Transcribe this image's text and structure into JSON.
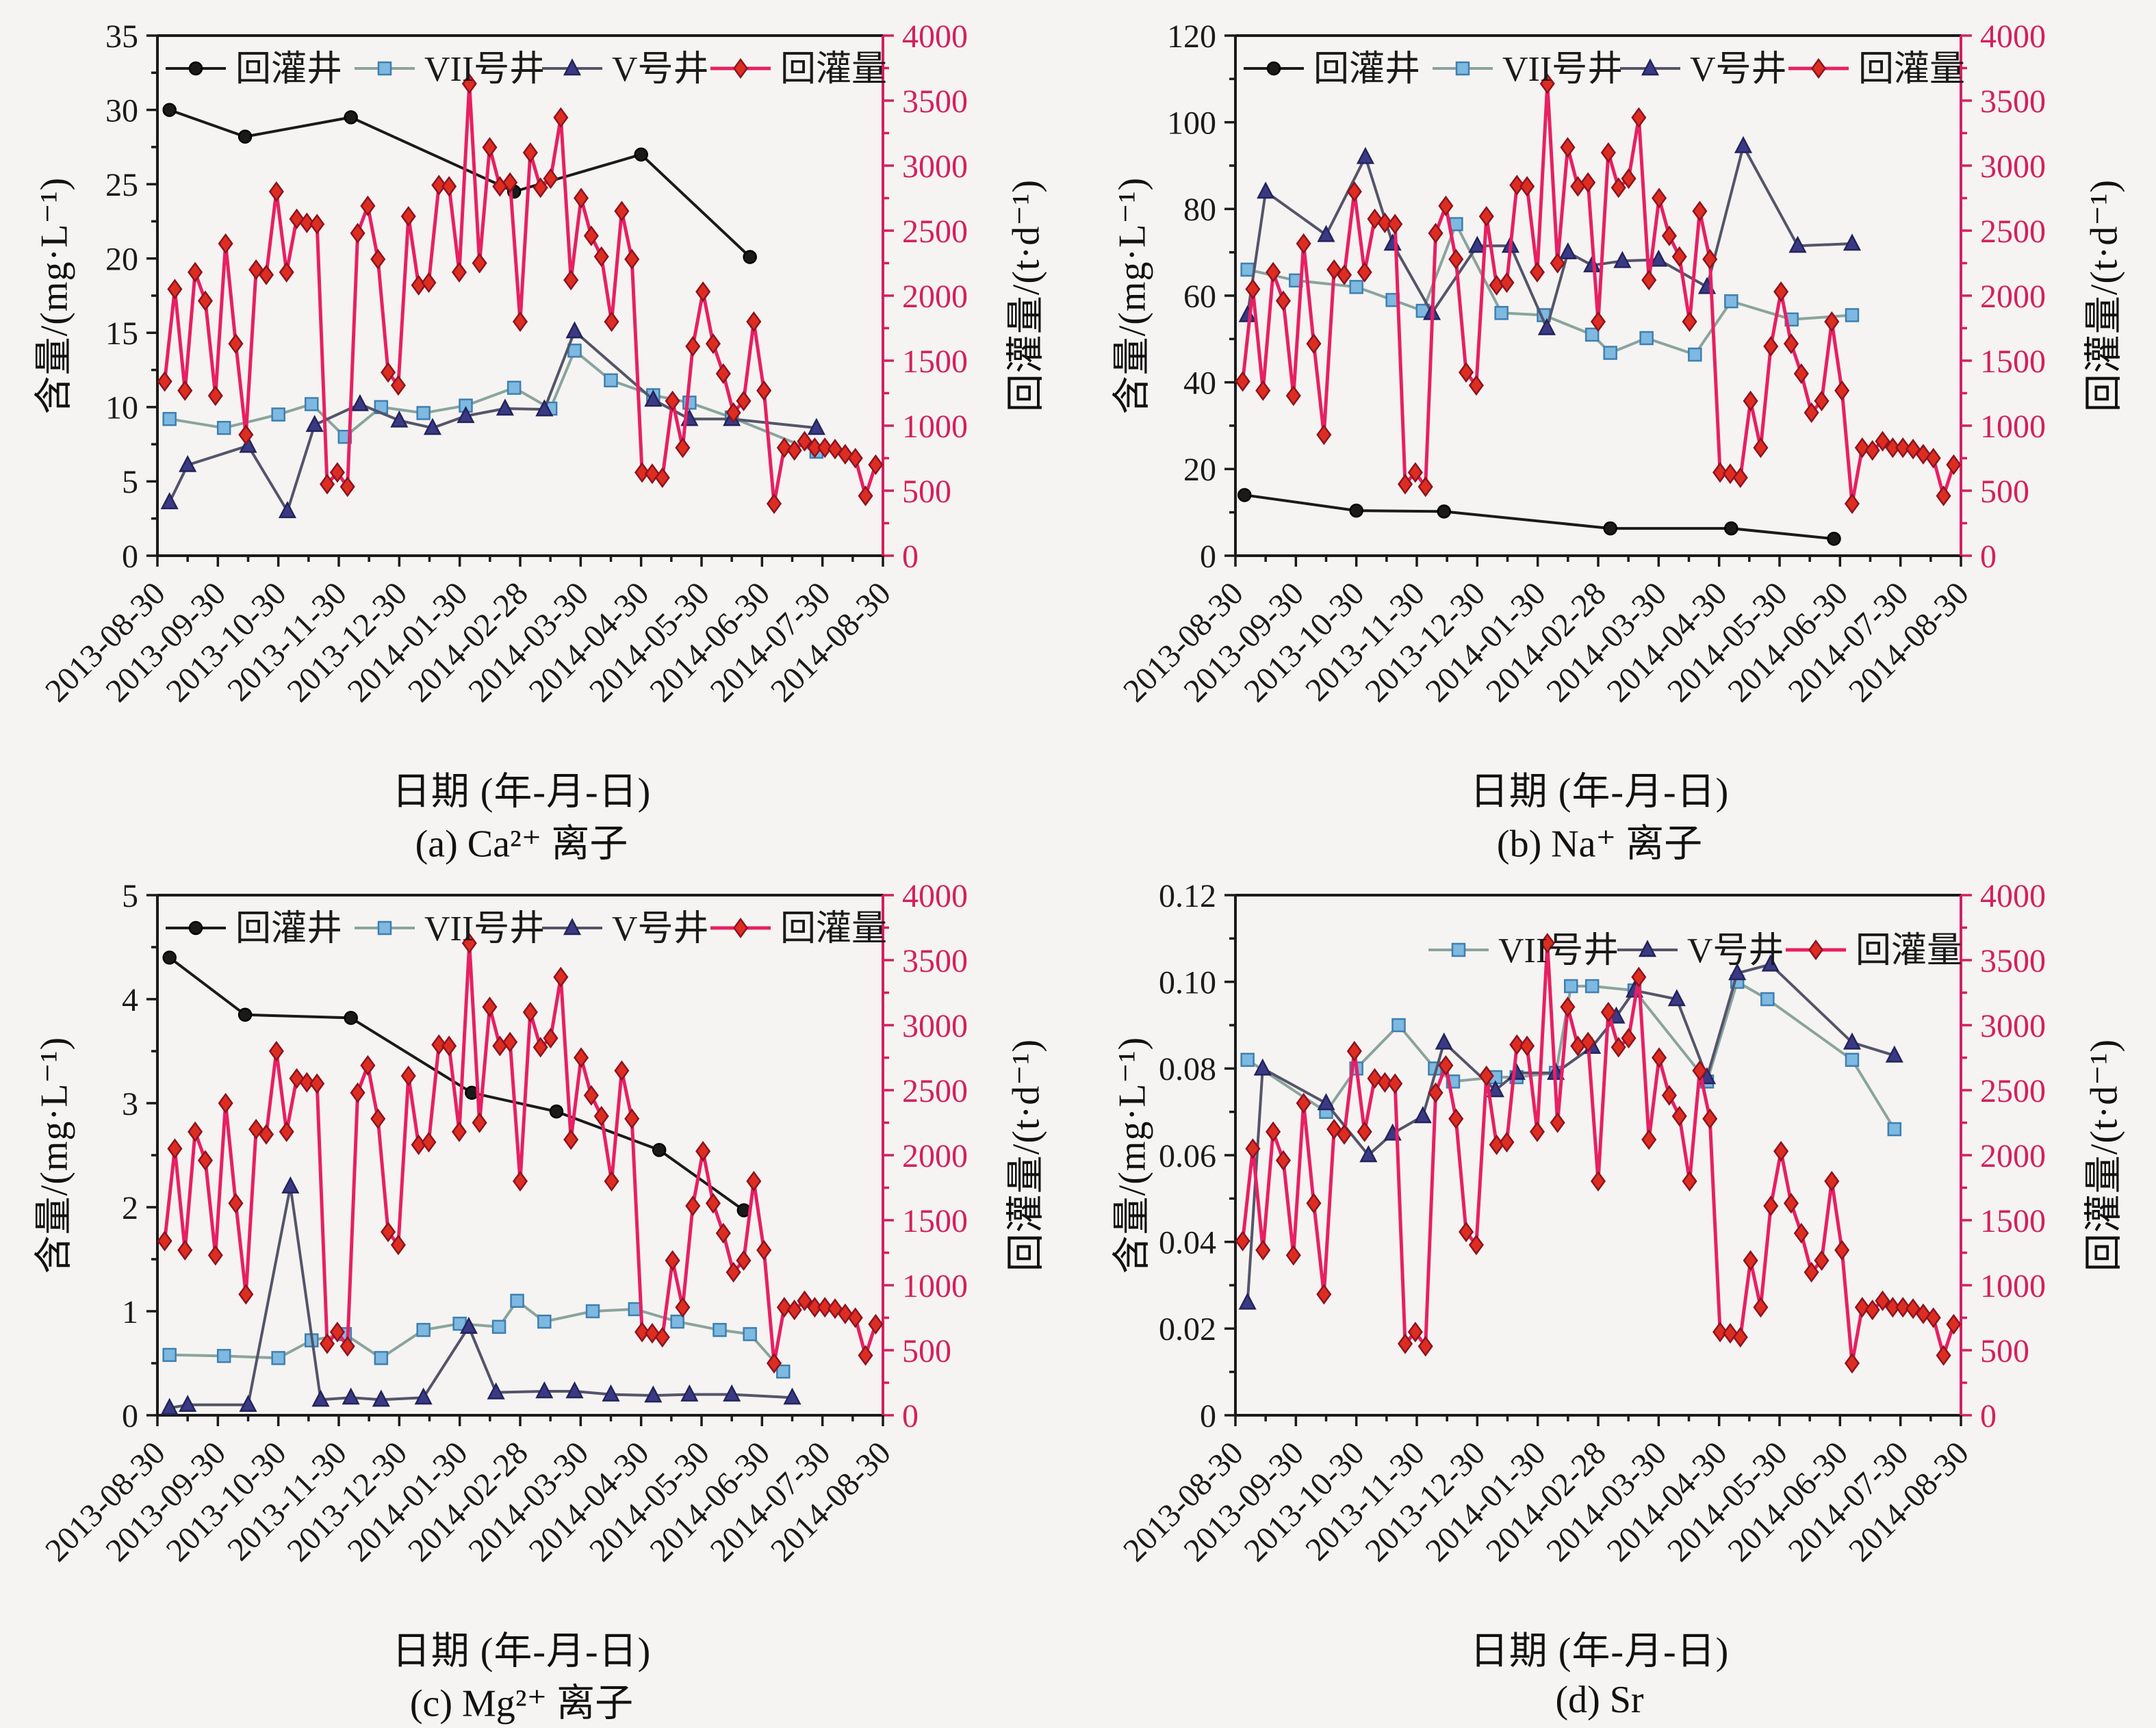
{
  "figure": {
    "background": "#f5f4f2",
    "axis_color": "#1a1a1a",
    "xlabel": "日期 (年-月-日)",
    "ylabel_left": "含量/(mg·L⁻¹)",
    "ylabel_right": "回灌量/(t·d⁻¹)",
    "x_tick_labels": [
      "2013-08-30",
      "2013-09-30",
      "2013-10-30",
      "2013-11-30",
      "2013-12-30",
      "2014-01-30",
      "2014-02-28",
      "2014-03-30",
      "2014-04-30",
      "2014-05-30",
      "2014-06-30",
      "2014-07-30",
      "2014-08-30"
    ],
    "right_axis": {
      "min": 0,
      "max": 4000,
      "tick_step": 500,
      "tick_labels": [
        "0",
        "500",
        "1000",
        "1500",
        "2000",
        "2500",
        "3000",
        "3500",
        "4000"
      ],
      "color": "#d4205f"
    },
    "legend_labels": [
      "回灌井",
      "VII号井",
      "V号井",
      "回灌量"
    ]
  },
  "styles": {
    "huiguanjing": {
      "marker": "circle",
      "marker_color": "#1a1a1a",
      "marker_stroke": "#000000",
      "line_color": "#1a1a1a"
    },
    "well7": {
      "marker": "square",
      "marker_color": "#7db9e0",
      "marker_stroke": "#3f7fb0",
      "line_color": "#8aa49d"
    },
    "well5": {
      "marker": "triangle",
      "marker_color": "#3a3a84",
      "marker_stroke": "#23235c",
      "line_color": "#54546a"
    },
    "recharge": {
      "marker": "diamond",
      "marker_color": "#dd2d20",
      "marker_stroke": "#8e1220",
      "line_color": "#e81f63"
    }
  },
  "recharge_series": {
    "label": "回灌量",
    "axis": "right",
    "x_start": 0.12,
    "x_step": 0.168,
    "values": [
      1340,
      2050,
      1270,
      2180,
      1960,
      1230,
      2400,
      1630,
      930,
      2200,
      2160,
      2800,
      2180,
      2590,
      2560,
      2550,
      550,
      640,
      530,
      2480,
      2690,
      2280,
      1410,
      1310,
      2610,
      2080,
      2100,
      2850,
      2840,
      2180,
      3630,
      2250,
      3140,
      2840,
      2870,
      1800,
      3100,
      2830,
      2900,
      3370,
      2120,
      2750,
      2460,
      2300,
      1800,
      2650,
      2280,
      640,
      630,
      600,
      1190,
      830,
      1610,
      2030,
      1630,
      1400,
      1100,
      1190,
      1800,
      1270,
      400,
      830,
      810,
      880,
      830,
      830,
      820,
      780,
      750,
      460,
      700
    ]
  },
  "chart_data": [
    {
      "id": "a",
      "type": "line",
      "caption": "(a) Ca²⁺ 离子",
      "ylim": [
        0,
        35
      ],
      "yticks": [
        0,
        5,
        10,
        15,
        20,
        25,
        30,
        35
      ],
      "ytick_labels": [
        "0",
        "5",
        "10",
        "15",
        "20",
        "25",
        "30",
        "35"
      ],
      "ylim_right": [
        0,
        4000
      ],
      "series": [
        {
          "key": "huiguanjing",
          "label": "回灌井",
          "axis": "left",
          "x": [
            0.2,
            1.45,
            3.2,
            5.9,
            8.0,
            9.8
          ],
          "y": [
            30.0,
            28.2,
            29.5,
            24.5,
            27.0,
            20.1
          ]
        },
        {
          "key": "well7",
          "label": "VII号井",
          "axis": "left",
          "x": [
            0.2,
            1.1,
            2.0,
            2.55,
            3.1,
            3.7,
            4.4,
            5.1,
            5.9,
            6.5,
            6.9,
            7.5,
            8.2,
            8.8,
            9.5,
            10.9
          ],
          "y": [
            9.2,
            8.6,
            9.5,
            10.2,
            8.0,
            10.0,
            9.6,
            10.1,
            11.3,
            9.9,
            13.8,
            11.8,
            10.8,
            10.3,
            9.3,
            7.0
          ]
        },
        {
          "key": "well5",
          "label": "V号井",
          "axis": "left",
          "x": [
            0.2,
            0.5,
            1.5,
            2.15,
            2.6,
            3.35,
            4.0,
            4.55,
            5.1,
            5.75,
            6.4,
            6.9,
            8.2,
            8.8,
            9.5,
            10.9
          ],
          "y": [
            3.6,
            6.1,
            7.4,
            3.0,
            8.8,
            10.2,
            9.1,
            8.6,
            9.4,
            9.9,
            9.85,
            15.1,
            10.5,
            9.2,
            9.2,
            8.6
          ]
        },
        {
          "key": "recharge",
          "label": "回灌量",
          "axis": "right",
          "shared": true
        }
      ]
    },
    {
      "id": "b",
      "type": "line",
      "caption": "(b) Na⁺ 离子",
      "ylim": [
        0,
        120
      ],
      "yticks": [
        0,
        20,
        40,
        60,
        80,
        100,
        120
      ],
      "ytick_labels": [
        "0",
        "20",
        "40",
        "60",
        "80",
        "100",
        "120"
      ],
      "ylim_right": [
        0,
        4000
      ],
      "series": [
        {
          "key": "huiguanjing",
          "label": "回灌井",
          "axis": "left",
          "x": [
            0.15,
            2.0,
            3.45,
            6.2,
            8.2,
            9.9
          ],
          "y": [
            14.0,
            10.4,
            10.2,
            6.3,
            6.3,
            3.9
          ]
        },
        {
          "key": "well7",
          "label": "VII号井",
          "axis": "left",
          "x": [
            0.2,
            1.0,
            2.0,
            2.6,
            3.1,
            3.65,
            4.4,
            5.1,
            5.9,
            6.2,
            6.8,
            7.6,
            8.2,
            9.2,
            10.2
          ],
          "y": [
            66,
            63.5,
            62,
            59,
            56.5,
            76.5,
            56,
            55.5,
            51,
            46.8,
            50.2,
            46.4,
            58.7,
            54.5,
            55.5
          ]
        },
        {
          "key": "well5",
          "label": "V号井",
          "axis": "left",
          "x": [
            0.2,
            0.5,
            1.5,
            2.15,
            2.6,
            3.25,
            4.0,
            4.55,
            5.15,
            5.5,
            5.9,
            6.4,
            7.0,
            7.8,
            8.4,
            9.3,
            10.2
          ],
          "y": [
            55.5,
            84,
            74,
            92,
            72,
            56,
            71.5,
            71.5,
            52.5,
            70,
            67,
            68,
            68.3,
            62,
            94.5,
            71.5,
            72
          ]
        },
        {
          "key": "recharge",
          "label": "回灌量",
          "axis": "right",
          "shared": true
        }
      ]
    },
    {
      "id": "c",
      "type": "line",
      "caption": "(c) Mg²⁺ 离子",
      "ylim": [
        0,
        5
      ],
      "yticks": [
        0,
        1,
        2,
        3,
        4,
        5
      ],
      "ytick_labels": [
        "0",
        "1",
        "2",
        "3",
        "4",
        "5"
      ],
      "ylim_right": [
        0,
        4000
      ],
      "series": [
        {
          "key": "huiguanjing",
          "label": "回灌井",
          "axis": "left",
          "x": [
            0.2,
            1.45,
            3.2,
            5.2,
            6.6,
            8.3,
            9.7
          ],
          "y": [
            4.4,
            3.85,
            3.82,
            3.1,
            2.92,
            2.55,
            1.97
          ]
        },
        {
          "key": "well7",
          "label": "VII号井",
          "axis": "left",
          "x": [
            0.2,
            1.1,
            2.0,
            2.55,
            3.1,
            3.7,
            4.4,
            5.0,
            5.65,
            5.95,
            6.4,
            7.2,
            7.9,
            8.6,
            9.3,
            9.8,
            10.35
          ],
          "y": [
            0.58,
            0.57,
            0.55,
            0.72,
            0.78,
            0.55,
            0.82,
            0.88,
            0.85,
            1.1,
            0.9,
            1.0,
            1.02,
            0.9,
            0.82,
            0.78,
            0.42
          ]
        },
        {
          "key": "well5",
          "label": "V号井",
          "axis": "left",
          "x": [
            0.2,
            0.5,
            1.5,
            2.2,
            2.7,
            3.2,
            3.7,
            4.4,
            5.15,
            5.6,
            6.4,
            6.9,
            7.5,
            8.2,
            8.8,
            9.5,
            10.5
          ],
          "y": [
            0.07,
            0.1,
            0.1,
            2.2,
            0.15,
            0.17,
            0.15,
            0.17,
            0.85,
            0.22,
            0.23,
            0.23,
            0.2,
            0.19,
            0.2,
            0.2,
            0.17
          ]
        },
        {
          "key": "recharge",
          "label": "回灌量",
          "axis": "right",
          "shared": true
        }
      ]
    },
    {
      "id": "d",
      "type": "line",
      "caption": "(d) Sr",
      "ylim": [
        0,
        0.12
      ],
      "yticks": [
        0,
        0.02,
        0.04,
        0.06,
        0.08,
        0.1,
        0.12
      ],
      "ytick_labels": [
        "0",
        "0.02",
        "0.04",
        "0.06",
        "0.08",
        "0.10",
        "0.12"
      ],
      "ylim_right": [
        0,
        4000
      ],
      "series": [
        {
          "key": "well7",
          "label": "VII号井",
          "axis": "left",
          "x": [
            0.2,
            1.5,
            2.0,
            2.7,
            3.3,
            3.6,
            4.3,
            4.65,
            5.3,
            5.55,
            5.9,
            6.6,
            7.8,
            8.3,
            8.8,
            10.2,
            10.9
          ],
          "y": [
            0.082,
            0.07,
            0.08,
            0.09,
            0.08,
            0.077,
            0.078,
            0.078,
            0.079,
            0.099,
            0.099,
            0.098,
            0.077,
            0.1,
            0.096,
            0.082,
            0.066
          ]
        },
        {
          "key": "well5",
          "label": "V号井",
          "axis": "left",
          "x": [
            0.2,
            0.45,
            1.5,
            2.2,
            2.6,
            3.1,
            3.45,
            4.3,
            4.65,
            5.3,
            5.9,
            6.3,
            6.6,
            7.3,
            7.8,
            8.3,
            8.85,
            10.2,
            10.9
          ],
          "y": [
            0.026,
            0.08,
            0.072,
            0.06,
            0.065,
            0.069,
            0.086,
            0.075,
            0.079,
            0.079,
            0.085,
            0.092,
            0.098,
            0.096,
            0.078,
            0.102,
            0.104,
            0.086,
            0.083
          ]
        },
        {
          "key": "recharge",
          "label": "回灌量",
          "axis": "right",
          "shared": true
        }
      ]
    }
  ]
}
